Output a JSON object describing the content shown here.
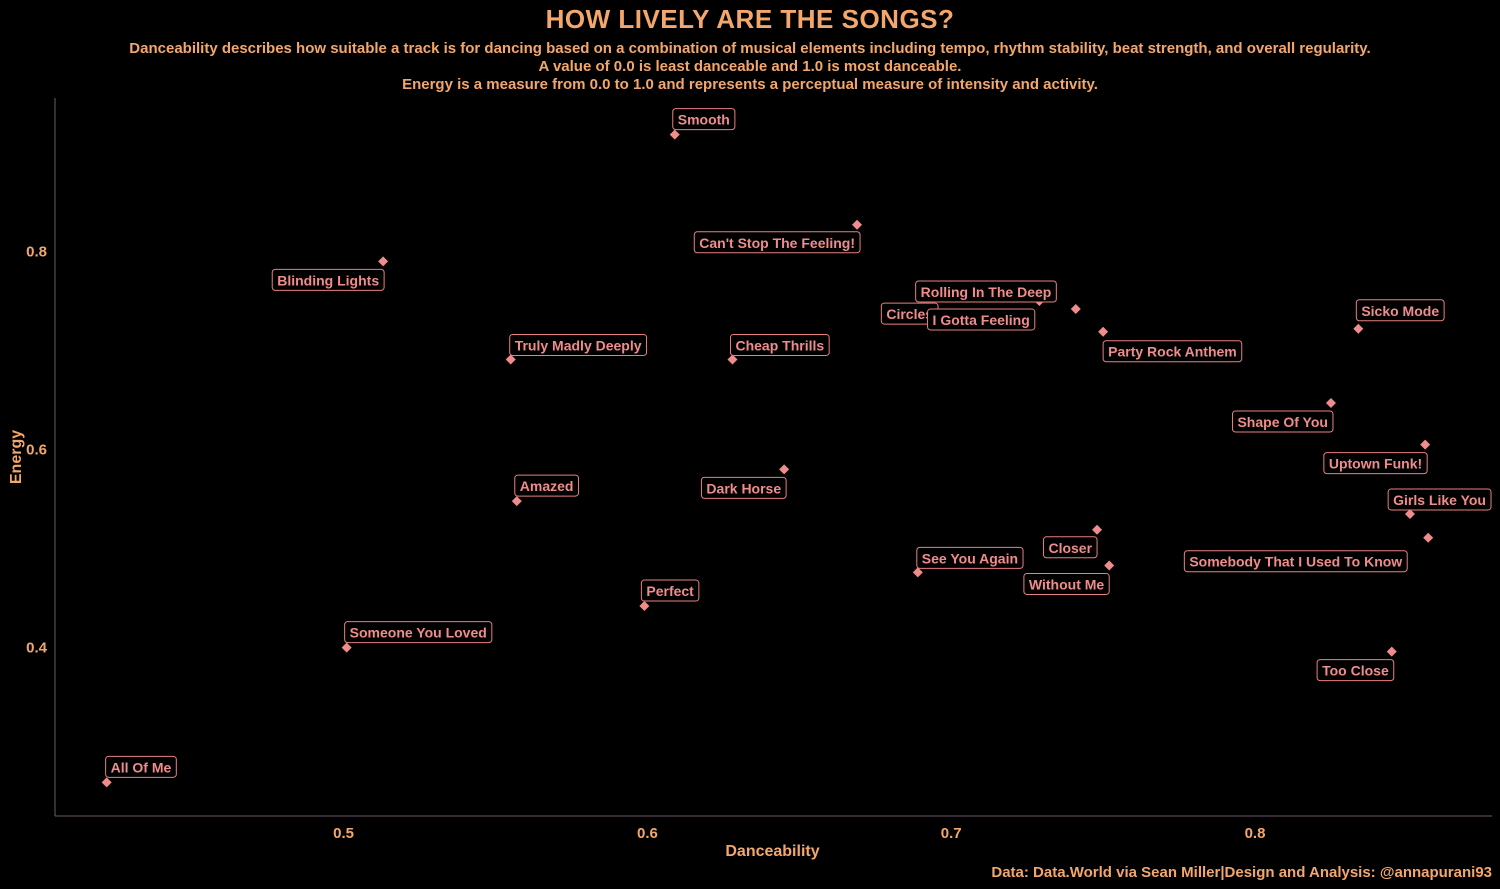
{
  "header": {
    "title": "HOW LIVELY ARE THE SONGS?",
    "subtitle_lines": [
      "Danceability describes how suitable a track is for dancing based on a combination of musical elements including tempo, rhythm stability, beat strength, and overall regularity.",
      "A value of 0.0 is least danceable and 1.0 is most danceable.",
      "Energy is a measure from 0.0 to 1.0 and represents a perceptual measure of intensity and activity."
    ],
    "caption": "Data: Data.World via Sean Miller|Design and Analysis: @annapurani93"
  },
  "colors": {
    "background": "#000000",
    "text": "#F4A76C",
    "point": "#F08C8C",
    "label_border": "#E8807F",
    "axis_line": "#6B5A6E"
  },
  "chart_data": {
    "type": "scatter",
    "xlabel": "Danceability",
    "ylabel": "Energy",
    "xlim": [
      0.405,
      0.878
    ],
    "ylim": [
      0.23,
      0.955
    ],
    "xticks": [
      0.5,
      0.6,
      0.7,
      0.8
    ],
    "xtick_labels": [
      "0.5",
      "0.6",
      "0.7",
      "0.8"
    ],
    "yticks": [
      0.4,
      0.6,
      0.8
    ],
    "ytick_labels": [
      "0.4",
      "0.6",
      "0.8"
    ],
    "grid": false,
    "legend": "none",
    "points": [
      {
        "label": "Smooth",
        "x": 0.609,
        "y": 0.918
      },
      {
        "label": "Can't Stop The Feeling!",
        "x": 0.669,
        "y": 0.827
      },
      {
        "label": "Blinding Lights",
        "x": 0.513,
        "y": 0.79
      },
      {
        "label": "Circles",
        "x": 0.695,
        "y": 0.756
      },
      {
        "label": "Rolling In The Deep",
        "x": 0.729,
        "y": 0.75
      },
      {
        "label": "I Gotta Feeling",
        "x": 0.741,
        "y": 0.742
      },
      {
        "label": "Party Rock Anthem",
        "x": 0.75,
        "y": 0.719
      },
      {
        "label": "Sicko Mode",
        "x": 0.834,
        "y": 0.722
      },
      {
        "label": "Truly Madly Deeply",
        "x": 0.555,
        "y": 0.691
      },
      {
        "label": "Cheap Thrills",
        "x": 0.628,
        "y": 0.691
      },
      {
        "label": "Shape Of You",
        "x": 0.825,
        "y": 0.647
      },
      {
        "label": "Uptown Funk!",
        "x": 0.856,
        "y": 0.605
      },
      {
        "label": "Dark Horse",
        "x": 0.645,
        "y": 0.58
      },
      {
        "label": "Amazed",
        "x": 0.557,
        "y": 0.548
      },
      {
        "label": "Girls Like You",
        "x": 0.851,
        "y": 0.535
      },
      {
        "label": "Closer",
        "x": 0.748,
        "y": 0.519
      },
      {
        "label": "Somebody That I Used To Know",
        "x": 0.857,
        "y": 0.511
      },
      {
        "label": "Without Me",
        "x": 0.752,
        "y": 0.483
      },
      {
        "label": "See You Again",
        "x": 0.689,
        "y": 0.476
      },
      {
        "label": "Perfect",
        "x": 0.599,
        "y": 0.442
      },
      {
        "label": "Someone You Loved",
        "x": 0.501,
        "y": 0.4
      },
      {
        "label": "Too Close",
        "x": 0.845,
        "y": 0.396
      },
      {
        "label": "All Of Me",
        "x": 0.422,
        "y": 0.264
      }
    ]
  }
}
